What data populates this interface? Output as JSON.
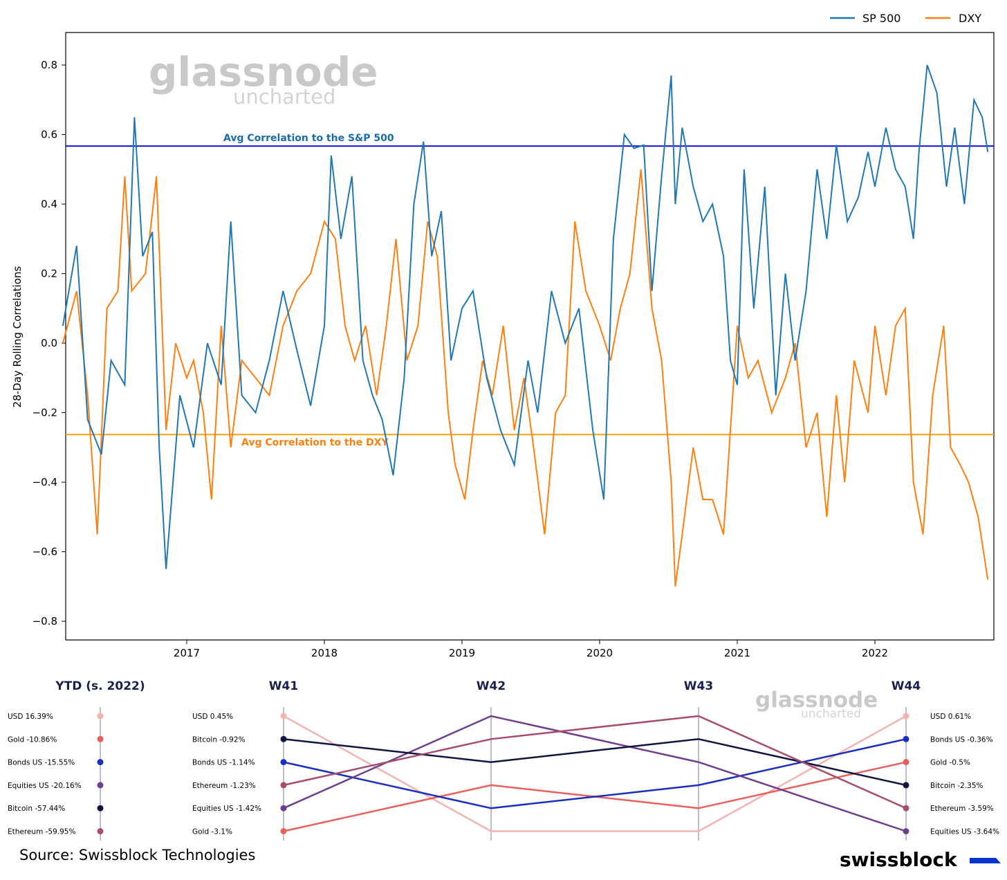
{
  "legend": {
    "items": [
      {
        "label": "SP 500",
        "color": "#1f77b4"
      },
      {
        "label": "DXY",
        "color": "#ff7f0e"
      }
    ]
  },
  "watermark": {
    "main": "glassnode",
    "sub": "uncharted"
  },
  "chart_data": [
    {
      "type": "line",
      "ylabel": "28-Day Rolling Correlations",
      "ylim": [
        -0.85,
        0.9
      ],
      "xlim": [
        2016.1,
        2022.85
      ],
      "x_ticks": [
        "2017",
        "2018",
        "2019",
        "2020",
        "2021",
        "2022"
      ],
      "y_ticks": [
        "0.8",
        "0.6",
        "0.4",
        "0.2",
        "0.0",
        "−0.2",
        "−0.4",
        "−0.6",
        "−0.8"
      ],
      "grid": false,
      "legend_position": "top-right",
      "reference_lines": [
        {
          "label": "Avg Correlation to the S&P 500",
          "value": 0.567,
          "color": "#1010e0",
          "label_color": "#1a6cb0"
        },
        {
          "label": "Avg Correlation to the DXY",
          "value": -0.263,
          "color": "#ffa20e",
          "label_color": "#ff7f0e"
        }
      ],
      "series": [
        {
          "name": "SP 500",
          "color": "#1f77b4",
          "x": [
            2016.1,
            2016.2,
            2016.28,
            2016.38,
            2016.45,
            2016.55,
            2016.62,
            2016.68,
            2016.75,
            2016.8,
            2016.85,
            2016.95,
            2017.05,
            2017.15,
            2017.25,
            2017.32,
            2017.4,
            2017.5,
            2017.6,
            2017.7,
            2017.8,
            2017.9,
            2018.0,
            2018.05,
            2018.12,
            2018.2,
            2018.28,
            2018.35,
            2018.42,
            2018.5,
            2018.58,
            2018.65,
            2018.72,
            2018.78,
            2018.85,
            2018.92,
            2019.0,
            2019.08,
            2019.18,
            2019.28,
            2019.38,
            2019.48,
            2019.55,
            2019.65,
            2019.75,
            2019.85,
            2019.95,
            2020.03,
            2020.1,
            2020.18,
            2020.25,
            2020.32,
            2020.38,
            2020.45,
            2020.52,
            2020.55,
            2020.6,
            2020.68,
            2020.75,
            2020.82,
            2020.9,
            2020.95,
            2021.0,
            2021.05,
            2021.12,
            2021.2,
            2021.28,
            2021.35,
            2021.42,
            2021.5,
            2021.58,
            2021.65,
            2021.72,
            2021.8,
            2021.88,
            2021.95,
            2022.0,
            2022.08,
            2022.15,
            2022.22,
            2022.28,
            2022.32,
            2022.38,
            2022.45,
            2022.52,
            2022.58,
            2022.65,
            2022.72,
            2022.78,
            2022.82
          ],
          "values": [
            0.05,
            0.28,
            -0.22,
            -0.32,
            -0.05,
            -0.12,
            0.65,
            0.25,
            0.32,
            -0.3,
            -0.65,
            -0.15,
            -0.3,
            0.0,
            -0.12,
            0.35,
            -0.15,
            -0.2,
            -0.05,
            0.15,
            -0.02,
            -0.18,
            0.05,
            0.54,
            0.3,
            0.48,
            -0.05,
            -0.15,
            -0.22,
            -0.38,
            -0.1,
            0.4,
            0.58,
            0.25,
            0.38,
            -0.05,
            0.1,
            0.15,
            -0.1,
            -0.25,
            -0.35,
            -0.05,
            -0.2,
            0.15,
            0.0,
            0.1,
            -0.25,
            -0.45,
            0.3,
            0.6,
            0.56,
            0.57,
            0.15,
            0.48,
            0.77,
            0.4,
            0.62,
            0.45,
            0.35,
            0.4,
            0.25,
            -0.05,
            -0.12,
            0.5,
            0.1,
            0.45,
            -0.15,
            0.2,
            -0.05,
            0.15,
            0.5,
            0.3,
            0.57,
            0.35,
            0.42,
            0.55,
            0.45,
            0.62,
            0.5,
            0.45,
            0.3,
            0.55,
            0.8,
            0.72,
            0.45,
            0.62,
            0.4,
            0.7,
            0.65,
            0.55
          ]
        },
        {
          "name": "DXY",
          "color": "#ff7f0e",
          "x": [
            2016.1,
            2016.2,
            2016.28,
            2016.35,
            2016.42,
            2016.5,
            2016.55,
            2016.6,
            2016.7,
            2016.78,
            2016.85,
            2016.92,
            2017.0,
            2017.05,
            2017.12,
            2017.18,
            2017.25,
            2017.32,
            2017.4,
            2017.5,
            2017.6,
            2017.7,
            2017.8,
            2017.9,
            2018.0,
            2018.08,
            2018.15,
            2018.22,
            2018.3,
            2018.38,
            2018.45,
            2018.52,
            2018.6,
            2018.68,
            2018.75,
            2018.82,
            2018.9,
            2018.95,
            2019.02,
            2019.08,
            2019.15,
            2019.22,
            2019.3,
            2019.38,
            2019.45,
            2019.52,
            2019.6,
            2019.68,
            2019.75,
            2019.82,
            2019.9,
            2020.0,
            2020.08,
            2020.15,
            2020.22,
            2020.3,
            2020.38,
            2020.45,
            2020.52,
            2020.55,
            2020.6,
            2020.68,
            2020.75,
            2020.82,
            2020.9,
            2021.0,
            2021.08,
            2021.15,
            2021.25,
            2021.35,
            2021.42,
            2021.5,
            2021.58,
            2021.65,
            2021.72,
            2021.78,
            2021.85,
            2021.95,
            2022.0,
            2022.08,
            2022.15,
            2022.22,
            2022.28,
            2022.35,
            2022.42,
            2022.5,
            2022.55,
            2022.62,
            2022.68,
            2022.75,
            2022.82
          ],
          "values": [
            0.0,
            0.15,
            -0.15,
            -0.55,
            0.1,
            0.15,
            0.48,
            0.15,
            0.2,
            0.48,
            -0.25,
            0.0,
            -0.1,
            -0.05,
            -0.2,
            -0.45,
            0.05,
            -0.3,
            -0.05,
            -0.1,
            -0.15,
            0.05,
            0.15,
            0.2,
            0.35,
            0.3,
            0.05,
            -0.05,
            0.05,
            -0.15,
            0.05,
            0.3,
            -0.05,
            0.05,
            0.35,
            0.25,
            -0.2,
            -0.35,
            -0.45,
            -0.25,
            -0.05,
            -0.15,
            0.05,
            -0.25,
            -0.1,
            -0.3,
            -0.55,
            -0.2,
            -0.15,
            0.35,
            0.15,
            0.05,
            -0.05,
            0.1,
            0.2,
            0.5,
            0.1,
            -0.05,
            -0.4,
            -0.7,
            -0.55,
            -0.3,
            -0.45,
            -0.45,
            -0.55,
            0.05,
            -0.1,
            -0.05,
            -0.2,
            -0.1,
            0.0,
            -0.3,
            -0.2,
            -0.5,
            -0.15,
            -0.4,
            -0.05,
            -0.2,
            0.05,
            -0.15,
            0.05,
            0.1,
            -0.4,
            -0.55,
            -0.15,
            0.05,
            -0.3,
            -0.35,
            -0.4,
            -0.5,
            -0.68
          ]
        }
      ]
    },
    {
      "type": "bump",
      "columns": [
        "YTD (s. 2022)",
        "W41",
        "W42",
        "W43",
        "W44"
      ],
      "ytd_labels": [
        "USD 16.39%",
        "Gold -10.86%",
        "Bonds US -15.55%",
        "Equities US -20.16%",
        "Bitcoin -57.44%",
        "Ethereum -59.95%"
      ],
      "w41_labels": [
        "USD 0.45%",
        "Bitcoin -0.92%",
        "Bonds US -1.14%",
        "Ethereum -1.23%",
        "Equities US -1.42%",
        "Gold -3.1%"
      ],
      "w44_labels": [
        "USD 0.61%",
        "Bonds US -0.36%",
        "Gold -0.5%",
        "Bitcoin -2.35%",
        "Ethereum -3.59%",
        "Equities US -3.64%"
      ],
      "assets": [
        {
          "name": "USD",
          "color": "#f2b3b3",
          "ranks": [
            1,
            1,
            6,
            6,
            1
          ]
        },
        {
          "name": "Gold",
          "color": "#e8605e",
          "ranks": [
            2,
            6,
            4,
            5,
            3
          ]
        },
        {
          "name": "Bonds US",
          "color": "#1a2fbf",
          "ranks": [
            3,
            3,
            5,
            4,
            2
          ]
        },
        {
          "name": "Equities US",
          "color": "#6e3f8c",
          "ranks": [
            4,
            5,
            1,
            3,
            6
          ]
        },
        {
          "name": "Bitcoin",
          "color": "#12143e",
          "ranks": [
            5,
            2,
            3,
            2,
            4
          ]
        },
        {
          "name": "Ethereum",
          "color": "#a64d6e",
          "ranks": [
            6,
            4,
            2,
            1,
            5
          ]
        }
      ]
    }
  ],
  "footer": {
    "source": "Source: Swissblock Technologies",
    "brand": "swissblock",
    "brand_color": "#0a33cc"
  }
}
